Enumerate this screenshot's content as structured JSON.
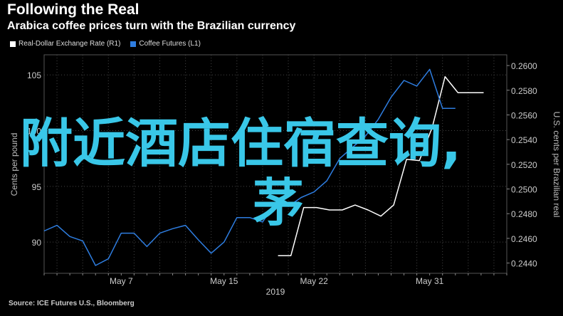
{
  "header": {
    "title": "Following the Real",
    "subtitle": "Arabica coffee prices turn with the Brazilian currency"
  },
  "legend": [
    {
      "label": "Real-Dollar Exchange Rate (R1)",
      "color": "#ffffff"
    },
    {
      "label": "Coffee Futures (L1)",
      "color": "#2e7de0"
    }
  ],
  "source": "Source: ICE Futures U.S., Bloomberg",
  "overlay": {
    "line1": "附近酒店住宿查询,",
    "line2": "茅"
  },
  "chart_data": {
    "type": "line",
    "title": "Following the Real",
    "subtitle": "Arabica coffee prices turn with the Brazilian currency",
    "xlabel": "2019",
    "ylabel_left": "Cents per pound",
    "ylabel_right": "U.S. cents per Brazilian real",
    "x_ticks": [
      "May 7",
      "May 15",
      "May 22",
      "May 31"
    ],
    "x_tick_days": [
      7,
      15,
      22,
      31
    ],
    "xlim": [
      1,
      37
    ],
    "ylim_left": [
      87.2,
      106.8
    ],
    "ylim_right": [
      0.24317,
      0.26087
    ],
    "yticks_left": [
      "90",
      "95",
      "100",
      "105"
    ],
    "yticks_right": [
      "0.2440",
      "0.2460",
      "0.2480",
      "0.2500",
      "0.2520",
      "0.2540",
      "0.2560",
      "0.2580",
      "0.2600"
    ],
    "grid": true,
    "series": [
      {
        "name": "Real-Dollar Exchange Rate (R1)",
        "axis": "right",
        "color": "#ffffff",
        "x": [
          19.2,
          20.2,
          21.2,
          22.2,
          23.2,
          24.2,
          25.2,
          26.2,
          27.2,
          28.2,
          29.2,
          30.2,
          31.2,
          32.2,
          33.2,
          34.2,
          35.2
        ],
        "y": [
          0.2446,
          0.2446,
          0.2485,
          0.2485,
          0.2483,
          0.2483,
          0.2487,
          0.2483,
          0.2478,
          0.2487,
          0.2524,
          0.2523,
          0.255,
          0.2591,
          0.2578,
          0.2578,
          0.2578
        ]
      },
      {
        "name": "Coffee Futures (L1)",
        "axis": "left",
        "color": "#2e7de0",
        "x": [
          1,
          2,
          3,
          4,
          5,
          6,
          7,
          8,
          9,
          10,
          11,
          12,
          13,
          14,
          15,
          16,
          17,
          18,
          19,
          20,
          21,
          22,
          23,
          24,
          25,
          26,
          27,
          28,
          29,
          30,
          31,
          32,
          33
        ],
        "y": [
          91.0,
          91.5,
          90.5,
          90.1,
          87.9,
          88.5,
          90.8,
          90.8,
          89.6,
          90.8,
          91.2,
          91.5,
          90.2,
          89.0,
          90.0,
          92.2,
          92.2,
          91.8,
          93.5,
          93.2,
          94.0,
          94.5,
          95.5,
          97.5,
          98.5,
          99.5,
          101.0,
          103.0,
          104.5,
          104.0,
          105.5,
          102.0,
          102.0
        ]
      }
    ]
  }
}
